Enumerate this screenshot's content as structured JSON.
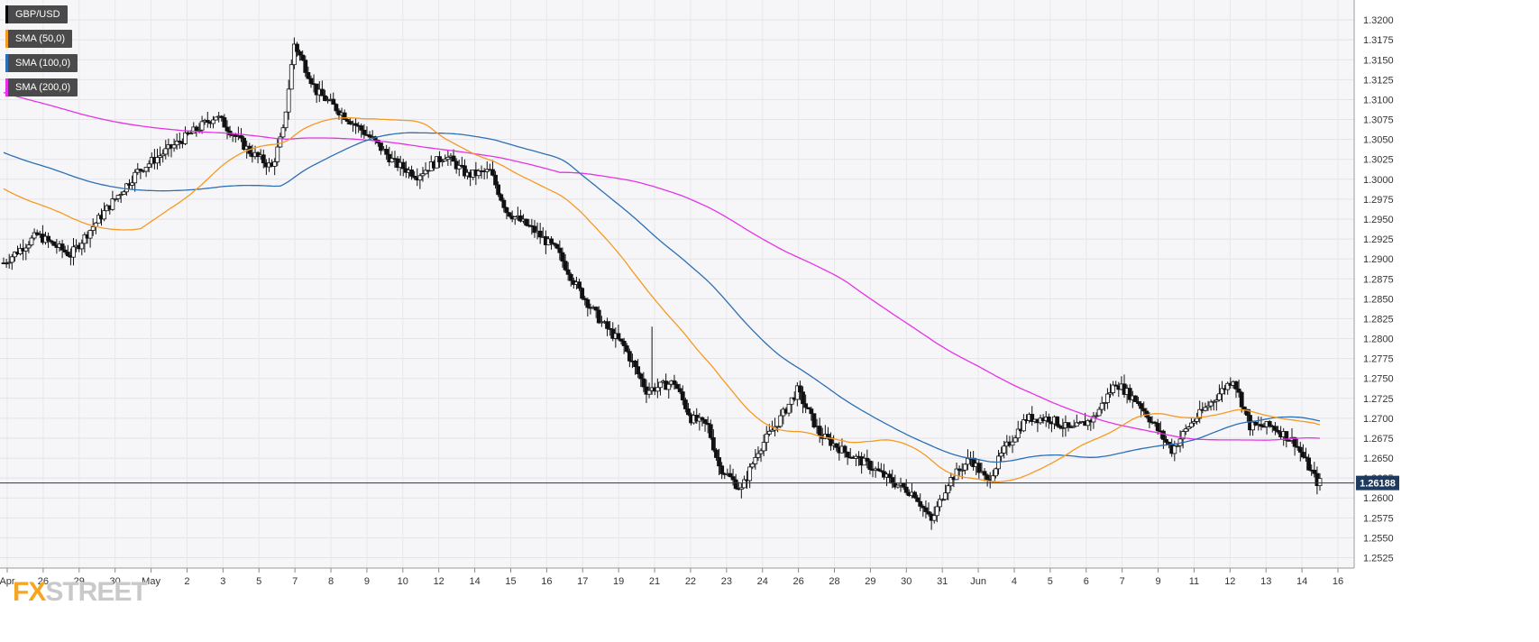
{
  "chart_data": {
    "type": "candlestick",
    "symbol": "GBP/USD",
    "price_axis": {
      "ylim": [
        1.2512,
        1.3225
      ],
      "ticks": [
        "1.3200",
        "1.3175",
        "1.3150",
        "1.3125",
        "1.3100",
        "1.3075",
        "1.3050",
        "1.3025",
        "1.3000",
        "1.2975",
        "1.2950",
        "1.2925",
        "1.2900",
        "1.2875",
        "1.2850",
        "1.2825",
        "1.2800",
        "1.2775",
        "1.2750",
        "1.2725",
        "1.2700",
        "1.2675",
        "1.2650",
        "1.2625",
        "1.2600",
        "1.2575",
        "1.2550",
        "1.2525"
      ],
      "current_price": "1.26188",
      "current_price_color": "#1e3a5f"
    },
    "time_axis": {
      "labels": [
        "Apr",
        "26",
        "29",
        "30",
        "May",
        "2",
        "3",
        "5",
        "7",
        "8",
        "9",
        "10",
        "12",
        "14",
        "15",
        "16",
        "17",
        "19",
        "21",
        "22",
        "23",
        "24",
        "26",
        "28",
        "29",
        "30",
        "31",
        "Jun",
        "4",
        "5",
        "6",
        "7",
        "9",
        "11",
        "12",
        "13",
        "14",
        "16"
      ]
    },
    "legend": [
      {
        "label": "GBP/USD",
        "color": "#000000"
      },
      {
        "label": "SMA (50,0)",
        "color": "#f59a23"
      },
      {
        "label": "SMA (100,0)",
        "color": "#2c6fb5"
      },
      {
        "label": "SMA (200,0)",
        "color": "#e632e6"
      }
    ],
    "grid": true,
    "legend_position": "top-left"
  },
  "logo": {
    "text_x": "FX",
    "text_rest": "STREET"
  }
}
